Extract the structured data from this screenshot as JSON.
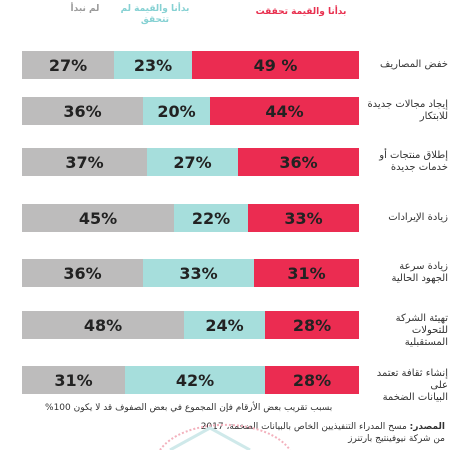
{
  "legend": {
    "realized": "بدأنا والقيمة تحققت",
    "not_realized": "بدأنا والقيمة لم تتحقق",
    "not_started": "لم نبدأ"
  },
  "colors": {
    "realized": "#eb2c51",
    "not_realized": "#a6dedc",
    "not_started": "#bdbcbc"
  },
  "note": "بسبب تقريب بعض الأرقام فإن المجموع في بعض الصفوف قد لا يكون 100%",
  "source": {
    "label": "المصدر:",
    "line1": " مسح المدراء التنفيذيين الخاص بالبيانات الضخمة، 2017",
    "line2": "من شركة نيوفينتيج بارتنرز"
  },
  "chart_data": {
    "type": "bar",
    "stacked": true,
    "orientation": "horizontal",
    "categories": [
      "خفض المصاريف",
      "إيجاد مجالات جديدة للابتكار",
      "إطلاق منتجات أو خدمات جديدة",
      "زيادة الإيرادات",
      "زيادة سرعة الجهود الحالية",
      "تهيئة الشركة للتحولات المستقبلية",
      "إنشاء ثقافة تعتمد على البيانات الضخمة"
    ],
    "series": [
      {
        "name": "بدأنا والقيمة تحققت",
        "values": [
          49,
          44,
          36,
          33,
          31,
          28,
          28
        ]
      },
      {
        "name": "بدأنا والقيمة لم تتحقق",
        "values": [
          23,
          20,
          27,
          22,
          33,
          24,
          42
        ]
      },
      {
        "name": "لم نبدأ",
        "values": [
          27,
          36,
          37,
          45,
          36,
          48,
          31
        ]
      }
    ],
    "value_labels": {
      "realized": [
        "49 %",
        "44%",
        "36%",
        "33%",
        "31%",
        "28%",
        "28%"
      ],
      "not_realized": [
        "23%",
        "20%",
        "27%",
        "22%",
        "33%",
        "24%",
        "42%"
      ],
      "not_started": [
        "27%",
        "36%",
        "37%",
        "45%",
        "36%",
        "48%",
        "31%"
      ]
    },
    "label_lines": [
      [
        "خفض المصاريف"
      ],
      [
        "إيجاد مجالات جديدة",
        "للابتكار"
      ],
      [
        "إطلاق منتجات أو",
        "خدمات جديدة"
      ],
      [
        "زيادة الإيرادات"
      ],
      [
        "زيادة سرعة",
        "الجهود الحالية"
      ],
      [
        "تهيئة الشركة للتحولات",
        "المستقبلية"
      ],
      [
        "إنشاء ثقافة تعتمد على",
        "البيانات الضخمة"
      ]
    ]
  }
}
